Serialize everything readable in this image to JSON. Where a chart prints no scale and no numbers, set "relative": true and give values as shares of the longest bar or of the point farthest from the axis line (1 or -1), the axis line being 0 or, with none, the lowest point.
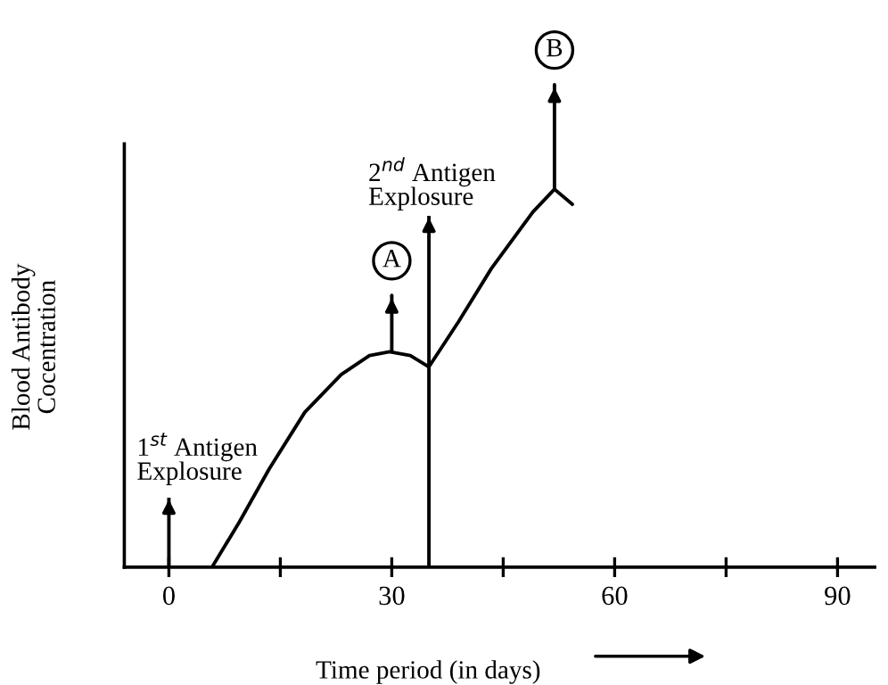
{
  "chart_data": {
    "type": "line",
    "relative": true,
    "xlabel": "Time period (in days)",
    "ylabel": "Blood Antibody\nCocentration",
    "x": [
      5.8,
      9.5,
      13.5,
      18.3,
      23.2,
      27,
      29.7,
      32.5,
      35,
      39,
      43.4,
      49,
      51.9,
      54.3
    ],
    "series": [
      {
        "color": "#000000",
        "values": [
          0,
          0.12,
          0.26,
          0.41,
          0.51,
          0.56,
          0.57,
          0.56,
          0.53,
          0.65,
          0.79,
          0.94,
          1.0,
          0.96
        ]
      }
    ],
    "xlim": [
      -6,
      95
    ],
    "xticks": [
      0,
      {
        "value": 15,
        "label": null
      },
      30,
      {
        "value": 45,
        "label": null
      },
      60,
      {
        "value": 75,
        "label": null
      },
      90
    ],
    "grid": false,
    "legend": false,
    "ref_lines": [
      {
        "axis": "x",
        "value": 0,
        "label": "1$^{st}$ Antigen\nExplosure"
      },
      {
        "axis": "x",
        "value": 35,
        "label": "2$^{nd}$ Antigen\nExplosure"
      }
    ],
    "annotations": [
      {
        "text": "A",
        "x": 30,
        "y": 0.57
      },
      {
        "text": "B",
        "x": 51.9,
        "y": 1.0
      }
    ]
  }
}
